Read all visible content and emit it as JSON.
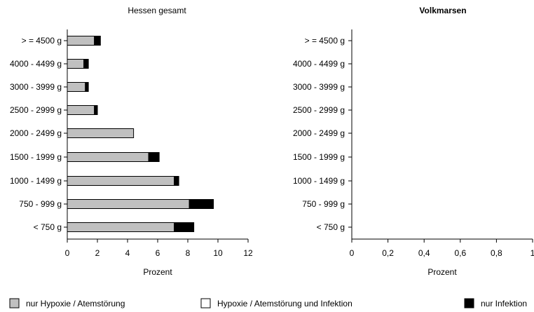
{
  "colors": {
    "hypoxie": "#c0c0c0",
    "infektion": "#000000",
    "both": "#ffffff",
    "axis": "#000000"
  },
  "chart_data": [
    {
      "type": "bar",
      "orientation": "horizontal",
      "stacked": true,
      "title": "Hessen gesamt",
      "xlabel": "Prozent",
      "ylabel": "",
      "xlim": [
        0,
        12
      ],
      "xticks": [
        "0",
        "2",
        "4",
        "6",
        "8",
        "10",
        "12"
      ],
      "categories": [
        "> = 4500 g",
        "4000 - 4499 g",
        "3000 - 3999 g",
        "2500 - 2999 g",
        "2000 - 2499 g",
        "1500 - 1999 g",
        "1000 - 1499 g",
        "750 - 999 g",
        "< 750 g"
      ],
      "series": [
        {
          "name": "nur Hypoxie / Atemstörung",
          "values": [
            1.8,
            1.1,
            1.2,
            1.8,
            4.4,
            5.4,
            7.1,
            8.1,
            7.1
          ]
        },
        {
          "name": "Hypoxie / Atemstörung und Infektion",
          "values": [
            0,
            0,
            0,
            0,
            0,
            0,
            0,
            0,
            0
          ]
        },
        {
          "name": "nur Infektion",
          "values": [
            0.4,
            0.3,
            0.2,
            0.2,
            0,
            0.7,
            0.3,
            1.6,
            1.3
          ]
        }
      ],
      "grid": false
    },
    {
      "type": "bar",
      "orientation": "horizontal",
      "stacked": true,
      "title": "Volkmarsen",
      "xlabel": "Prozent",
      "ylabel": "",
      "xlim": [
        0,
        1
      ],
      "xticks": [
        "0",
        "0,2",
        "0,4",
        "0,6",
        "0,8",
        "1"
      ],
      "categories": [
        "> = 4500 g",
        "4000 - 4499 g",
        "3000 - 3999 g",
        "2500 - 2999 g",
        "2000 - 2499 g",
        "1500 - 1999 g",
        "1000 - 1499 g",
        "750 - 999 g",
        "< 750 g"
      ],
      "series": [
        {
          "name": "nur Hypoxie / Atemstörung",
          "values": [
            0,
            0,
            0,
            0,
            0,
            0,
            0,
            0,
            0
          ]
        },
        {
          "name": "Hypoxie / Atemstörung und Infektion",
          "values": [
            0,
            0,
            0,
            0,
            0,
            0,
            0,
            0,
            0
          ]
        },
        {
          "name": "nur Infektion",
          "values": [
            0,
            0,
            0,
            0,
            0,
            0,
            0,
            0,
            0
          ]
        }
      ],
      "grid": false
    }
  ],
  "legend": {
    "items": [
      "nur Hypoxie / Atemstörung",
      "Hypoxie / Atemstörung und Infektion",
      "nur Infektion"
    ]
  }
}
